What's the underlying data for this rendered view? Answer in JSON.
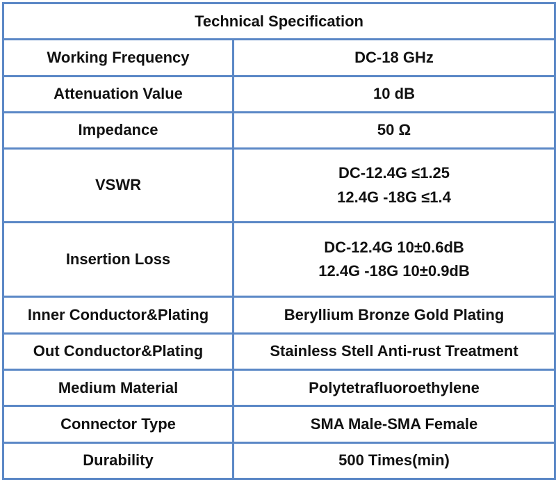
{
  "table": {
    "title": "Technical Specification",
    "rows": [
      {
        "label": "Working Frequency",
        "value": [
          "DC-18 GHz"
        ]
      },
      {
        "label": "Attenuation Value",
        "value": [
          "10 dB"
        ]
      },
      {
        "label": "Impedance",
        "value": [
          "50 Ω"
        ]
      },
      {
        "label": "VSWR",
        "value": [
          "DC-12.4G  ≤1.25",
          "12.4G -18G  ≤1.4"
        ]
      },
      {
        "label": "Insertion Loss",
        "value": [
          "DC-12.4G  10±0.6dB",
          "12.4G -18G  10±0.9dB"
        ]
      },
      {
        "label": "Inner Conductor&Plating",
        "value": [
          "Beryllium Bronze Gold Plating"
        ]
      },
      {
        "label": "Out Conductor&Plating",
        "value": [
          "Stainless Stell Anti-rust Treatment"
        ]
      },
      {
        "label": "Medium Material",
        "value": [
          "Polytetrafluoroethylene"
        ]
      },
      {
        "label": "Connector Type",
        "value": [
          "SMA Male-SMA Female"
        ]
      },
      {
        "label": "Durability",
        "value": [
          "500 Times(min)"
        ]
      }
    ]
  }
}
